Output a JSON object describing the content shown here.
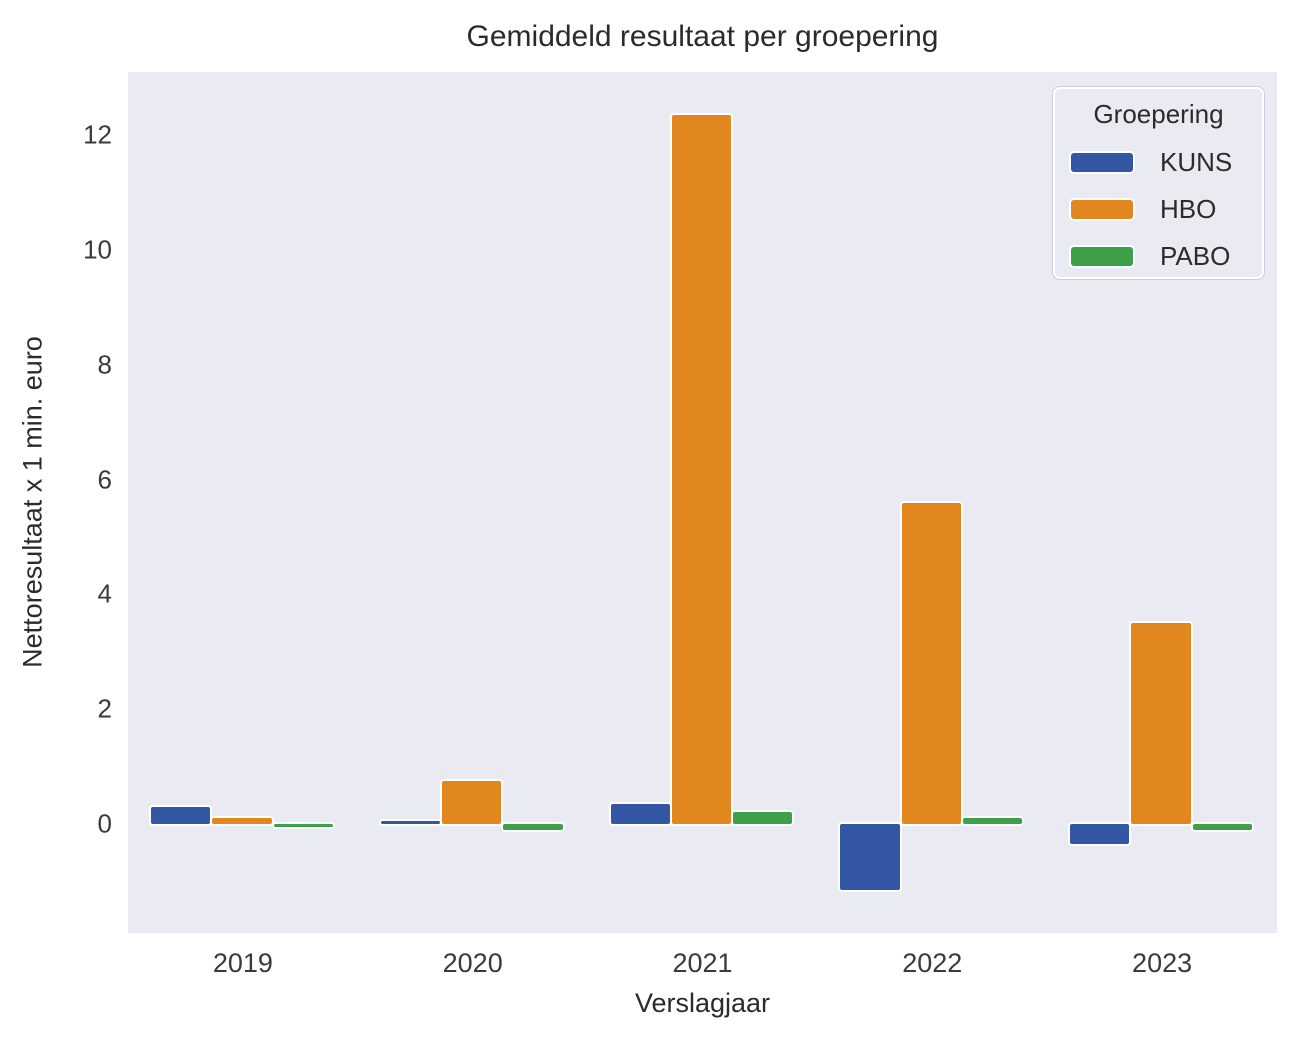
{
  "chart_data": {
    "type": "bar",
    "title": "Gemiddeld resultaat per groepering",
    "xlabel": "Verslagjaar",
    "ylabel": "Nettoresultaat x 1 min. euro",
    "legend_title": "Groepering",
    "legend_position": "upper right",
    "grid": false,
    "plot_bg": "#EAEAF2",
    "categories": [
      "2019",
      "2020",
      "2021",
      "2022",
      "2023"
    ],
    "series": [
      {
        "name": "KUNS",
        "color": "#3356A5",
        "values": [
          0.3,
          0.05,
          0.35,
          -1.15,
          -0.35
        ]
      },
      {
        "name": "HBO",
        "color": "#E2861F",
        "values": [
          0.1,
          0.75,
          12.35,
          5.6,
          3.5
        ]
      },
      {
        "name": "PABO",
        "color": "#3EA049",
        "values": [
          -0.05,
          -0.1,
          0.2,
          0.1,
          -0.1
        ]
      }
    ],
    "ylim": [
      -1.9,
      13.1
    ],
    "yticks": [
      0,
      2,
      4,
      6,
      8,
      10,
      12
    ]
  }
}
